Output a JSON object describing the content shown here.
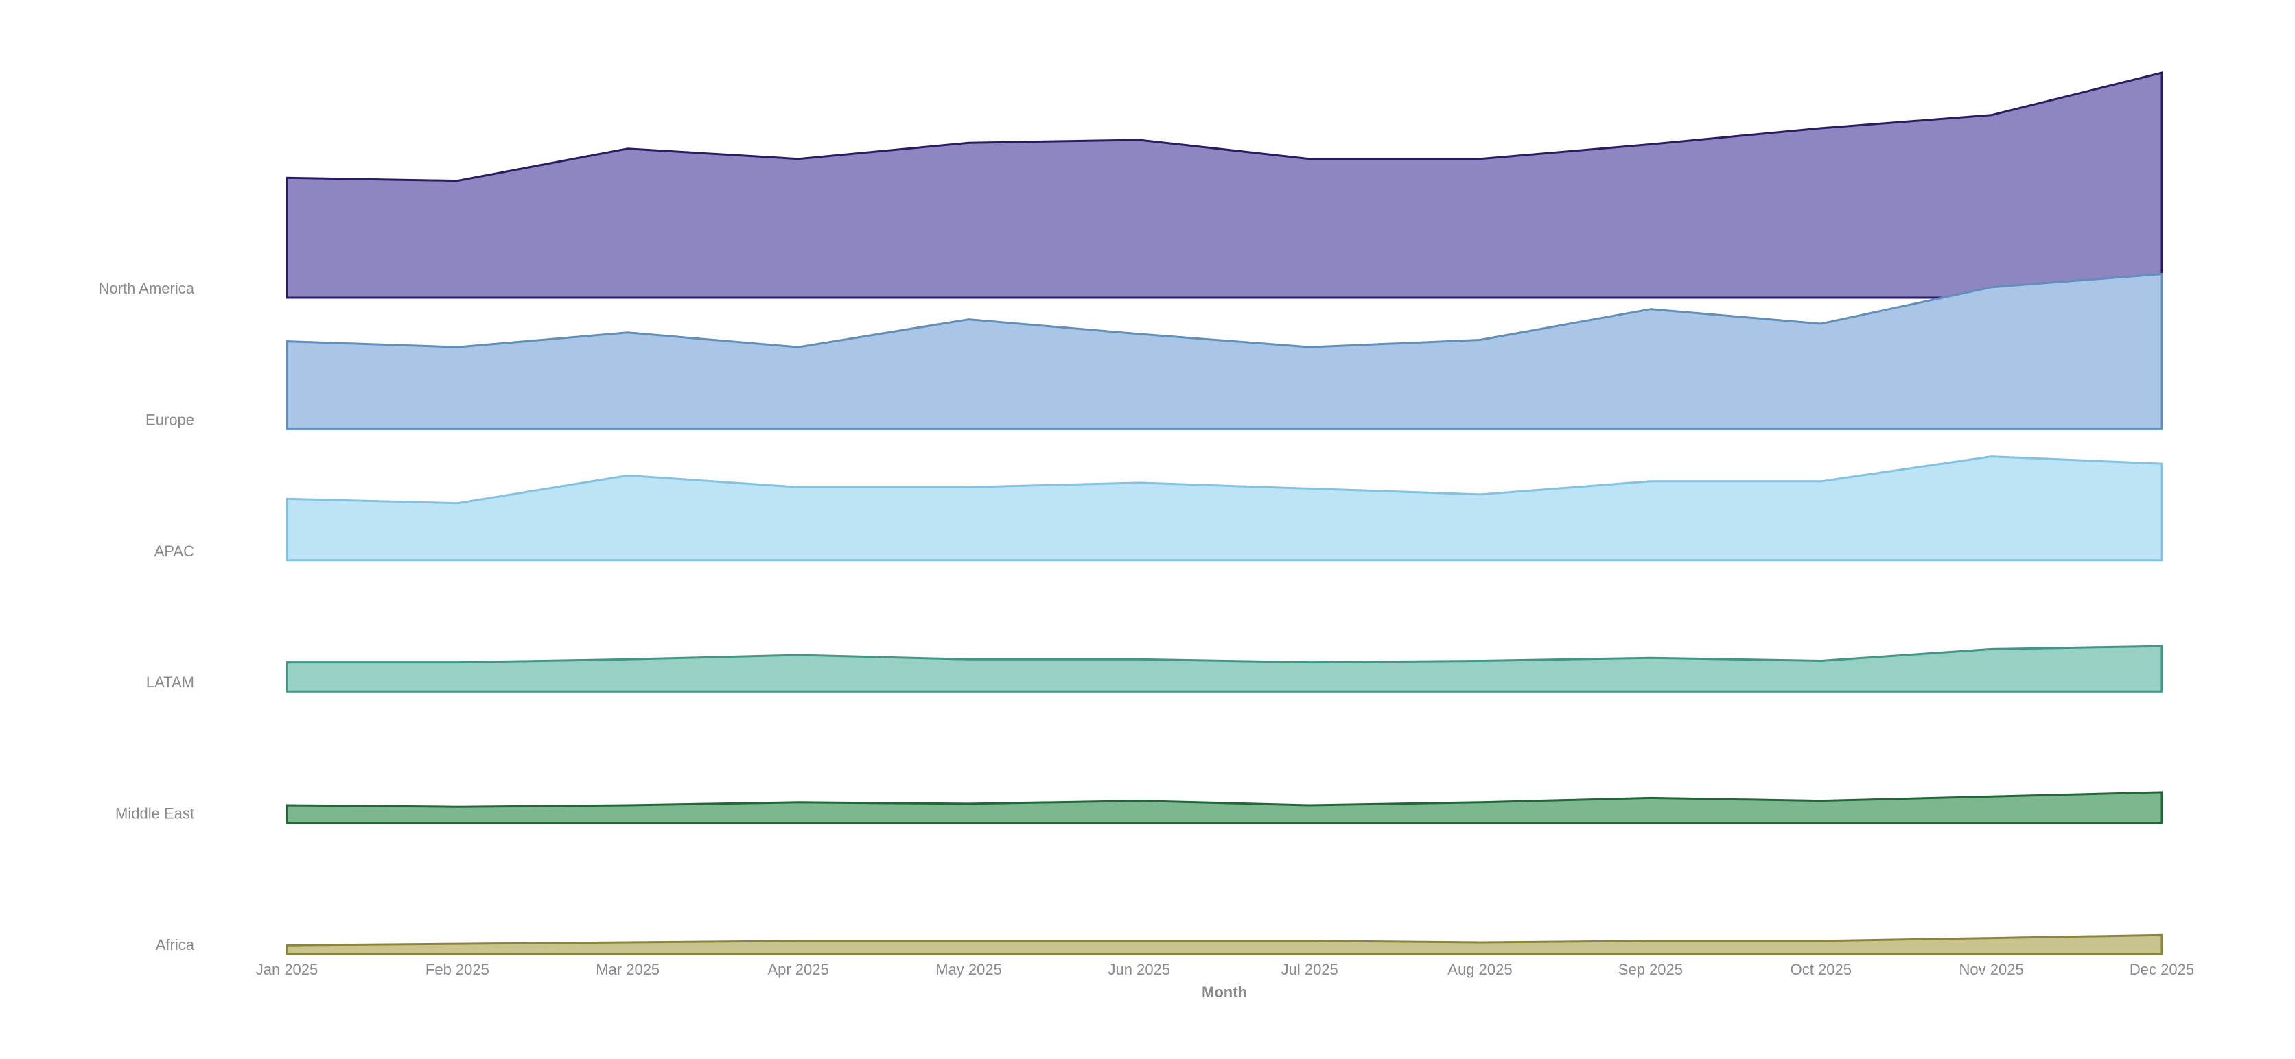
{
  "chart_data": {
    "type": "area",
    "title": "",
    "xlabel": "Month",
    "ylabel": "",
    "grid": false,
    "legend": "none",
    "categories": [
      "Jan 2025",
      "Feb 2025",
      "Mar 2025",
      "Apr 2025",
      "May 2025",
      "Jun 2025",
      "Jul 2025",
      "Aug 2025",
      "Sep 2025",
      "Oct 2025",
      "Nov 2025",
      "Dec 2025"
    ],
    "series": [
      {
        "name": "North America",
        "color_fill": "#8e86be",
        "color_line": "#2b1a6b",
        "values": [
          82,
          80,
          102,
          95,
          106,
          108,
          95,
          95,
          105,
          116,
          125,
          154
        ]
      },
      {
        "name": "Europe",
        "color_fill": "#abc6e4",
        "color_line": "#5d8fbf",
        "values": [
          60,
          56,
          66,
          56,
          75,
          65,
          56,
          61,
          82,
          72,
          97,
          106
        ]
      },
      {
        "name": "APAC",
        "color_fill": "#bee3f4",
        "color_line": "#7ec4e6",
        "values": [
          42,
          39,
          58,
          50,
          50,
          53,
          49,
          45,
          54,
          54,
          71,
          66
        ]
      },
      {
        "name": "LATAM",
        "color_fill": "#98d0c4",
        "color_line": "#3a9a86",
        "values": [
          20,
          20,
          22,
          25,
          22,
          22,
          20,
          21,
          23,
          21,
          29,
          31
        ]
      },
      {
        "name": "Middle East",
        "color_fill": "#7db78e",
        "color_line": "#1c6a35",
        "values": [
          12,
          11,
          12,
          14,
          13,
          15,
          12,
          14,
          17,
          15,
          18,
          21
        ]
      },
      {
        "name": "Africa",
        "color_fill": "#c9c48d",
        "color_line": "#8c8534",
        "values": [
          6,
          7,
          8,
          9,
          9,
          9,
          9,
          8,
          9,
          9,
          11,
          13
        ]
      }
    ]
  }
}
